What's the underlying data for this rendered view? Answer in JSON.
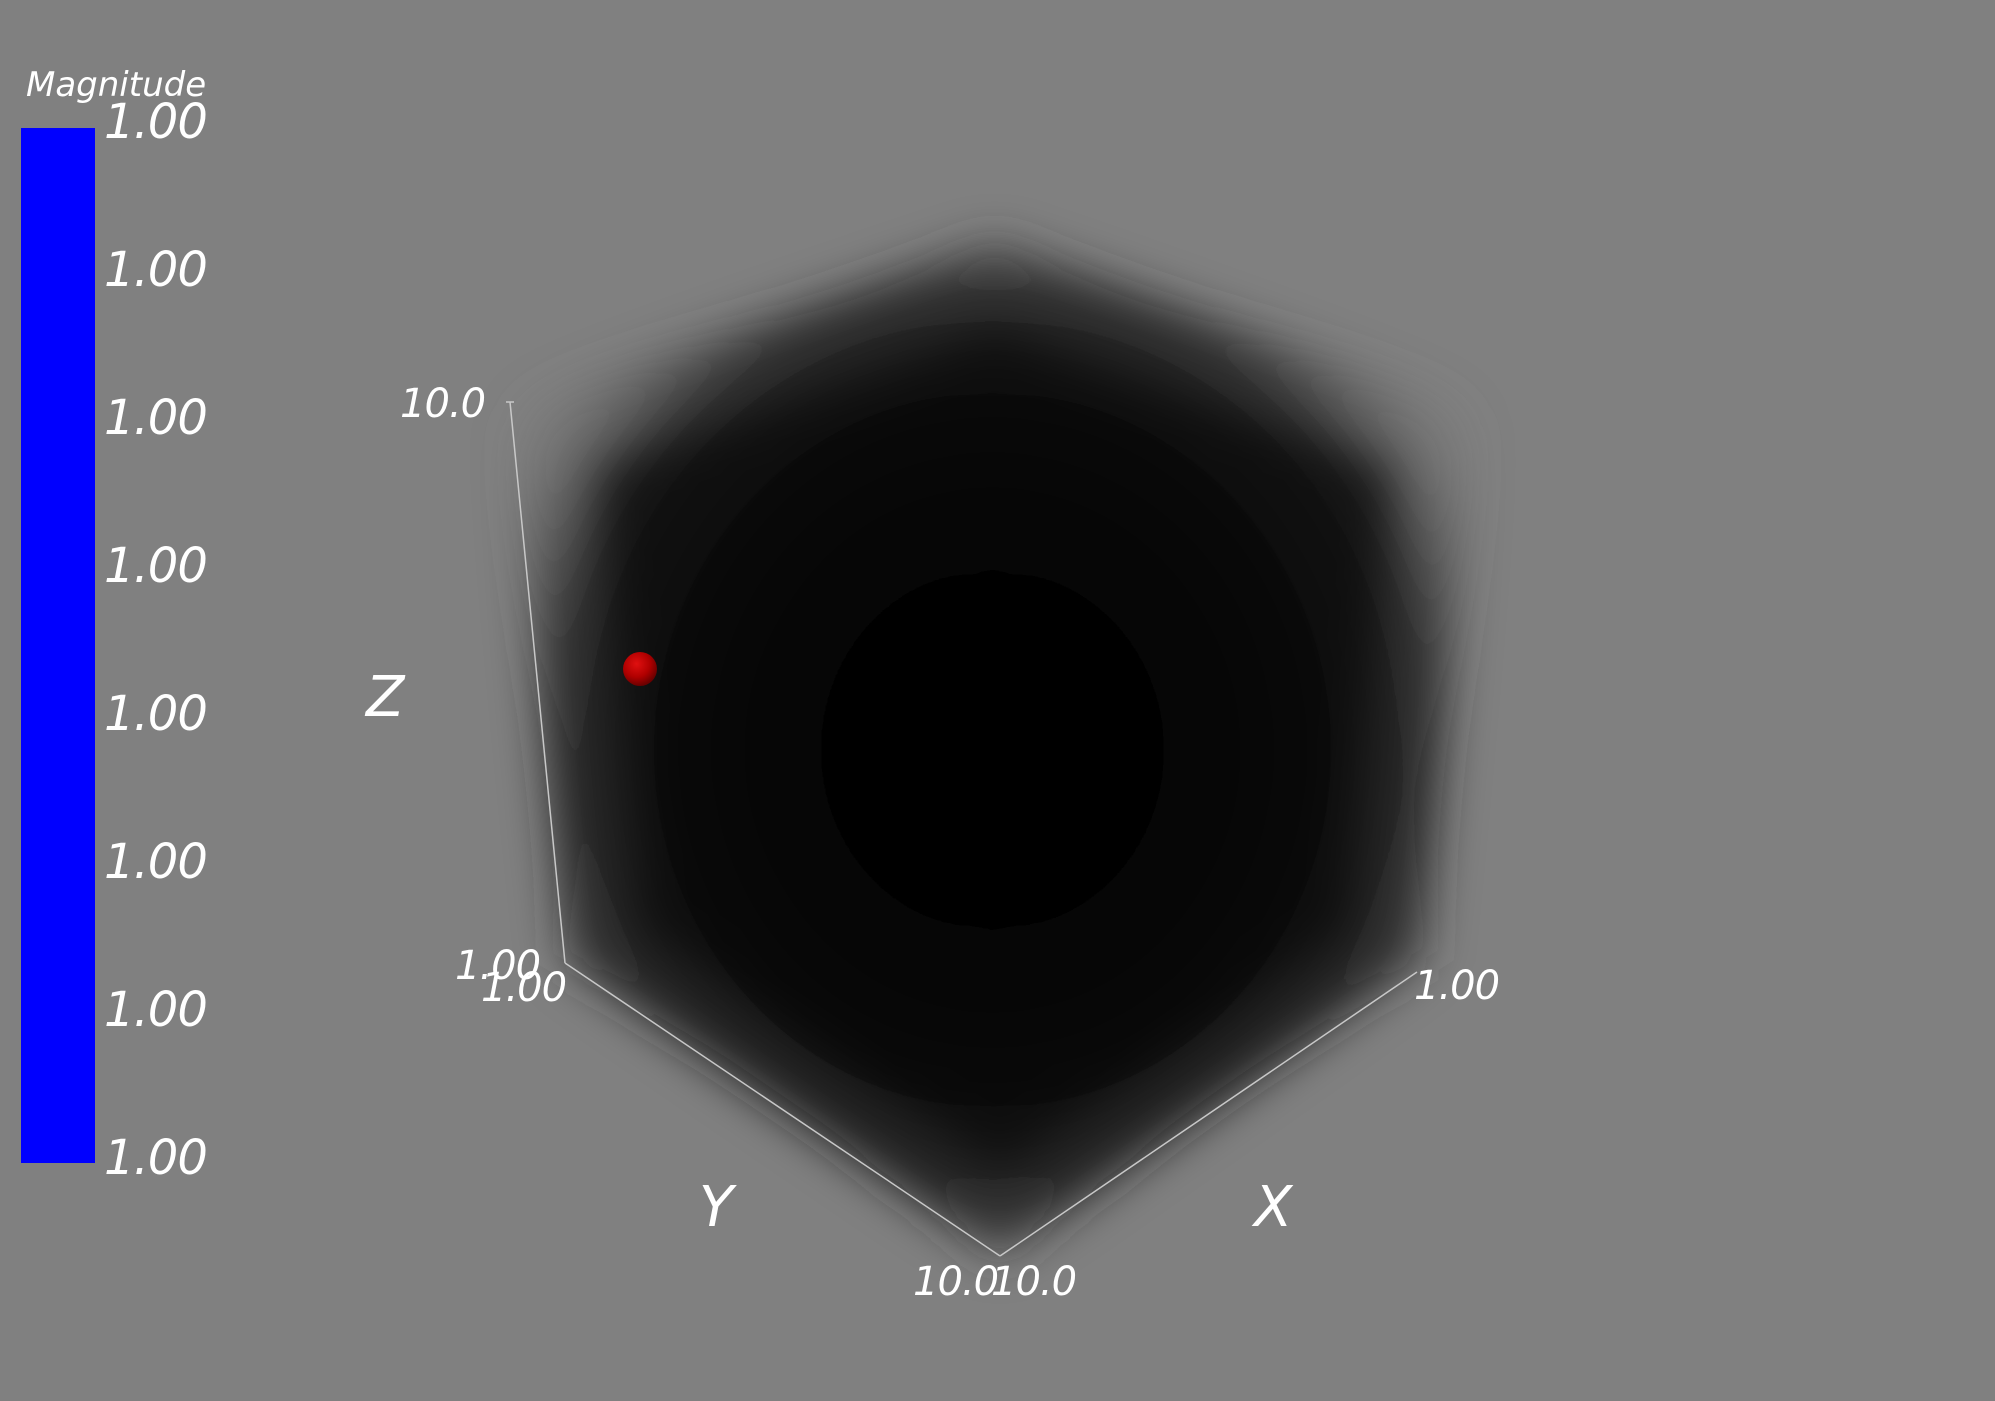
{
  "colorbar": {
    "title": "Magnitude",
    "color": "#0000ff",
    "ticks": [
      "1.00",
      "1.00",
      "1.00",
      "1.00",
      "1.00",
      "1.00",
      "1.00",
      "1.00"
    ]
  },
  "axes": {
    "x": {
      "name": "X",
      "min_label": "1.00",
      "max_label": "10.0"
    },
    "y": {
      "name": "Y",
      "min_label": "1.00",
      "max_label": "10.0"
    },
    "z": {
      "name": "Z",
      "min_label": "1.00",
      "max_label": "10.0"
    }
  },
  "scene": {
    "background": "#808080",
    "volume_color": "#000000",
    "marker_color": "#cc0000"
  }
}
